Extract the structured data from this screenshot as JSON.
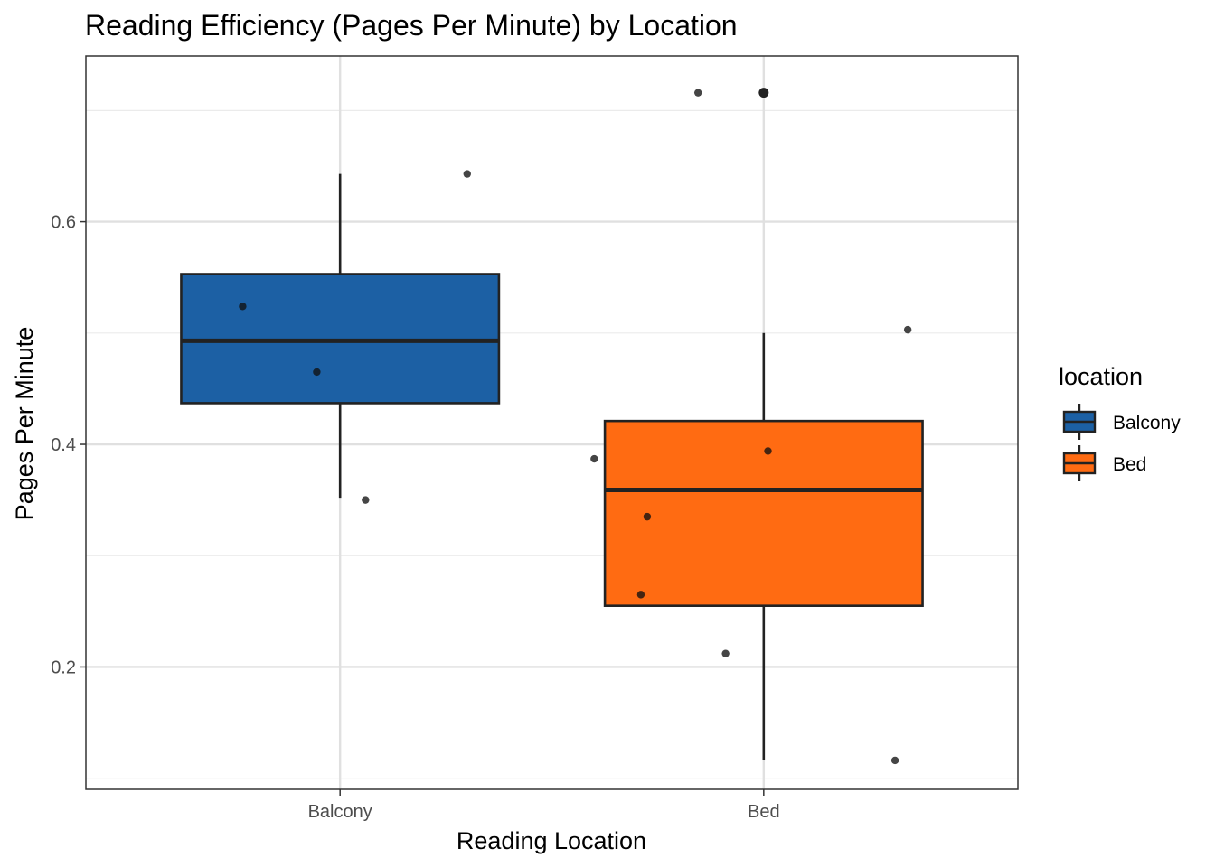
{
  "chart_data": {
    "type": "boxplot",
    "title": "Reading Efficiency (Pages Per Minute) by Location",
    "xlabel": "Reading Location",
    "ylabel": "Pages Per Minute",
    "ylim": [
      0.09,
      0.749
    ],
    "yticks": [
      0.2,
      0.4,
      0.6
    ],
    "ytick_labels": [
      "0.2",
      "0.4",
      "0.6"
    ],
    "yminor": [
      0.1,
      0.3,
      0.5,
      0.7
    ],
    "categories": [
      "Balcony",
      "Bed"
    ],
    "grid": true,
    "legend": {
      "title": "location",
      "position": "right",
      "entries": [
        "Balcony",
        "Bed"
      ]
    },
    "series": [
      {
        "category": "Balcony",
        "color": "#1c60a4",
        "whisker_low": 0.352,
        "q1": 0.437,
        "median": 0.493,
        "q3": 0.553,
        "whisker_high": 0.643,
        "points": [
          {
            "dx": -0.23,
            "y": 0.524
          },
          {
            "dx": -0.055,
            "y": 0.465
          },
          {
            "dx": 0.06,
            "y": 0.35
          },
          {
            "dx": 0.3,
            "y": 0.643
          }
        ]
      },
      {
        "category": "Bed",
        "color": "#ff6b12",
        "whisker_low": 0.116,
        "q1": 0.255,
        "median": 0.359,
        "q3": 0.421,
        "whisker_high": 0.5,
        "outliers": [
          0.716
        ],
        "points": [
          {
            "dx": -0.4,
            "y": 0.387
          },
          {
            "dx": -0.275,
            "y": 0.335
          },
          {
            "dx": -0.29,
            "y": 0.265
          },
          {
            "dx": 0.01,
            "y": 0.394
          },
          {
            "dx": -0.09,
            "y": 0.212
          },
          {
            "dx": 0.34,
            "y": 0.503
          },
          {
            "dx": 0.31,
            "y": 0.116
          },
          {
            "dx": -0.155,
            "y": 0.716
          }
        ]
      }
    ]
  }
}
